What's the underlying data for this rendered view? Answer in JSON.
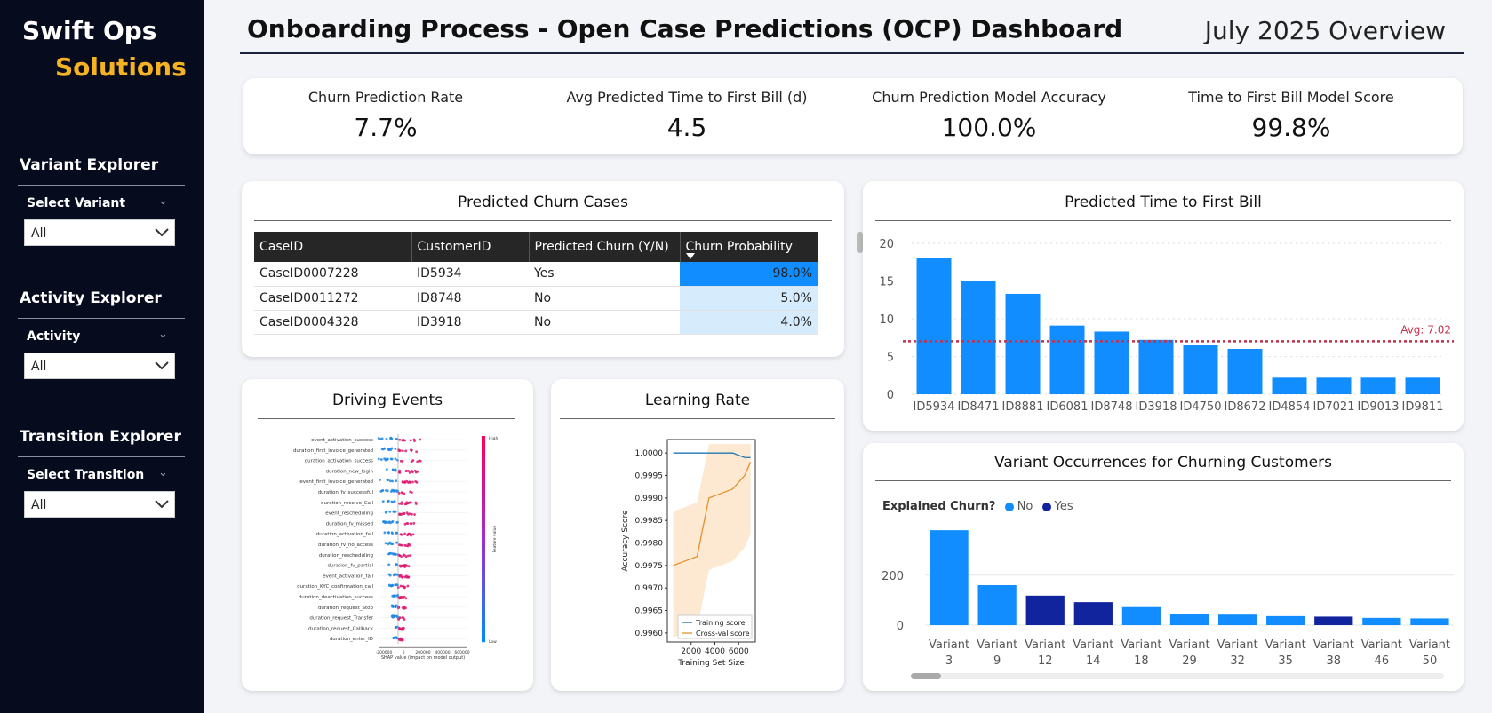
{
  "brand": {
    "line1": "Swift Ops",
    "line2": "Solutions",
    "accent_color": "#f5b223"
  },
  "sidebar": {
    "sections": [
      {
        "title": "Variant Explorer",
        "slicer_label": "Select Variant",
        "value": "All"
      },
      {
        "title": "Activity Explorer",
        "slicer_label": "Activity",
        "value": "All"
      },
      {
        "title": "Transition Explorer",
        "slicer_label": "Select Transition",
        "value": "All"
      }
    ]
  },
  "header": {
    "title": "Onboarding Process - Open Case Predictions (OCP) Dashboard",
    "subtitle": "July 2025 Overview"
  },
  "kpis": [
    {
      "label": "Churn Prediction Rate",
      "value": "7.7%"
    },
    {
      "label": "Avg Predicted Time to First Bill (d)",
      "value": "4.5"
    },
    {
      "label": "Churn Prediction Model Accuracy",
      "value": "100.0%"
    },
    {
      "label": "Time to First Bill Model Score",
      "value": "99.8%"
    }
  ],
  "churn_table": {
    "title": "Predicted Churn Cases",
    "columns": [
      "CaseID",
      "CustomerID",
      "Predicted Churn (Y/N)",
      "Churn Probability"
    ],
    "rows": [
      [
        "CaseID0007228",
        "ID5934",
        "Yes",
        "98.0%"
      ],
      [
        "CaseID0011272",
        "ID8748",
        "No",
        "5.0%"
      ],
      [
        "CaseID0004328",
        "ID3918",
        "No",
        "4.0%"
      ]
    ]
  },
  "driving_events": {
    "title": "Driving Events",
    "features": [
      "event_activation_success",
      "duration_first_invoice_generated",
      "duration_activation_success",
      "duration_new_login",
      "event_first_invoice_generated",
      "duration_fv_successful",
      "duration_receive_Call",
      "event_rescheduling",
      "duration_fv_missed",
      "duration_activation_fail",
      "duration_fv_no_access",
      "duration_rescheduling",
      "duration_fv_partial",
      "event_activation_fail",
      "duration_KYC_confirmation_call",
      "duration_deactivation_success",
      "duration_request_Stop",
      "duration_request_Transfer",
      "duration_request_Callback",
      "duration_enter_ID"
    ],
    "xlabel": "SHAP value (impact on model output)",
    "xticks": [
      "-200000",
      "0",
      "200000",
      "400000",
      "600000"
    ],
    "colorbar_high": "High",
    "colorbar_low": "Low",
    "colorbar_label": "Feature value"
  },
  "learning_rate": {
    "title": "Learning Rate",
    "xlabel": "Training Set Size",
    "ylabel": "Accuracy Score",
    "legend": [
      "Training score",
      "Cross-val score"
    ]
  },
  "chart_data": [
    {
      "type": "bar",
      "title": "Predicted Time to First Bill",
      "categories": [
        "ID5934",
        "ID8471",
        "ID8881",
        "ID6081",
        "ID8748",
        "ID3918",
        "ID4750",
        "ID8672",
        "ID4854",
        "ID7021",
        "ID9013",
        "ID9811"
      ],
      "values": [
        18,
        15,
        13.3,
        9.1,
        8.3,
        7.2,
        6.5,
        6.0,
        2.2,
        2.2,
        2.2,
        2.2
      ],
      "ylim": [
        0,
        20
      ],
      "yticks": [
        0,
        5,
        10,
        15,
        20
      ],
      "avg_line": {
        "value": 7.02,
        "label": "Avg: 7.02"
      },
      "bar_color": "#118dff"
    },
    {
      "type": "bar",
      "title": "Variant Occurrences for Churning Customers",
      "legend_title": "Explained Churn?",
      "legend": [
        {
          "name": "No",
          "color": "#118dff"
        },
        {
          "name": "Yes",
          "color": "#12239e"
        }
      ],
      "categories": [
        "Variant 3",
        "Variant 9",
        "Variant 12",
        "Variant 14",
        "Variant 18",
        "Variant 29",
        "Variant 32",
        "Variant 35",
        "Variant 38",
        "Variant 46",
        "Variant 50"
      ],
      "values": [
        380,
        160,
        118,
        92,
        72,
        44,
        42,
        36,
        34,
        29,
        27
      ],
      "explained": [
        "No",
        "No",
        "Yes",
        "Yes",
        "No",
        "No",
        "No",
        "No",
        "Yes",
        "No",
        "No"
      ],
      "ylim": [
        0,
        400
      ],
      "yticks": [
        0,
        200
      ]
    },
    {
      "type": "line",
      "title": "Learning Rate",
      "x": [
        500,
        1500,
        2500,
        3500,
        4500,
        5500,
        6500,
        7000
      ],
      "series": [
        {
          "name": "Training score",
          "values": [
            1.0,
            1.0,
            1.0,
            1.0,
            1.0,
            1.0,
            0.9999,
            0.9999
          ]
        },
        {
          "name": "Cross-val score",
          "values": [
            0.9975,
            0.9976,
            0.9977,
            0.999,
            0.9991,
            0.9992,
            0.9995,
            0.9998
          ]
        }
      ],
      "xticks": [
        2000,
        4000,
        6000
      ],
      "yticks": [
        0.996,
        0.9965,
        0.997,
        0.9975,
        0.998,
        0.9985,
        0.999,
        0.9995,
        1.0
      ],
      "ylim": [
        0.9958,
        1.0003
      ]
    }
  ]
}
